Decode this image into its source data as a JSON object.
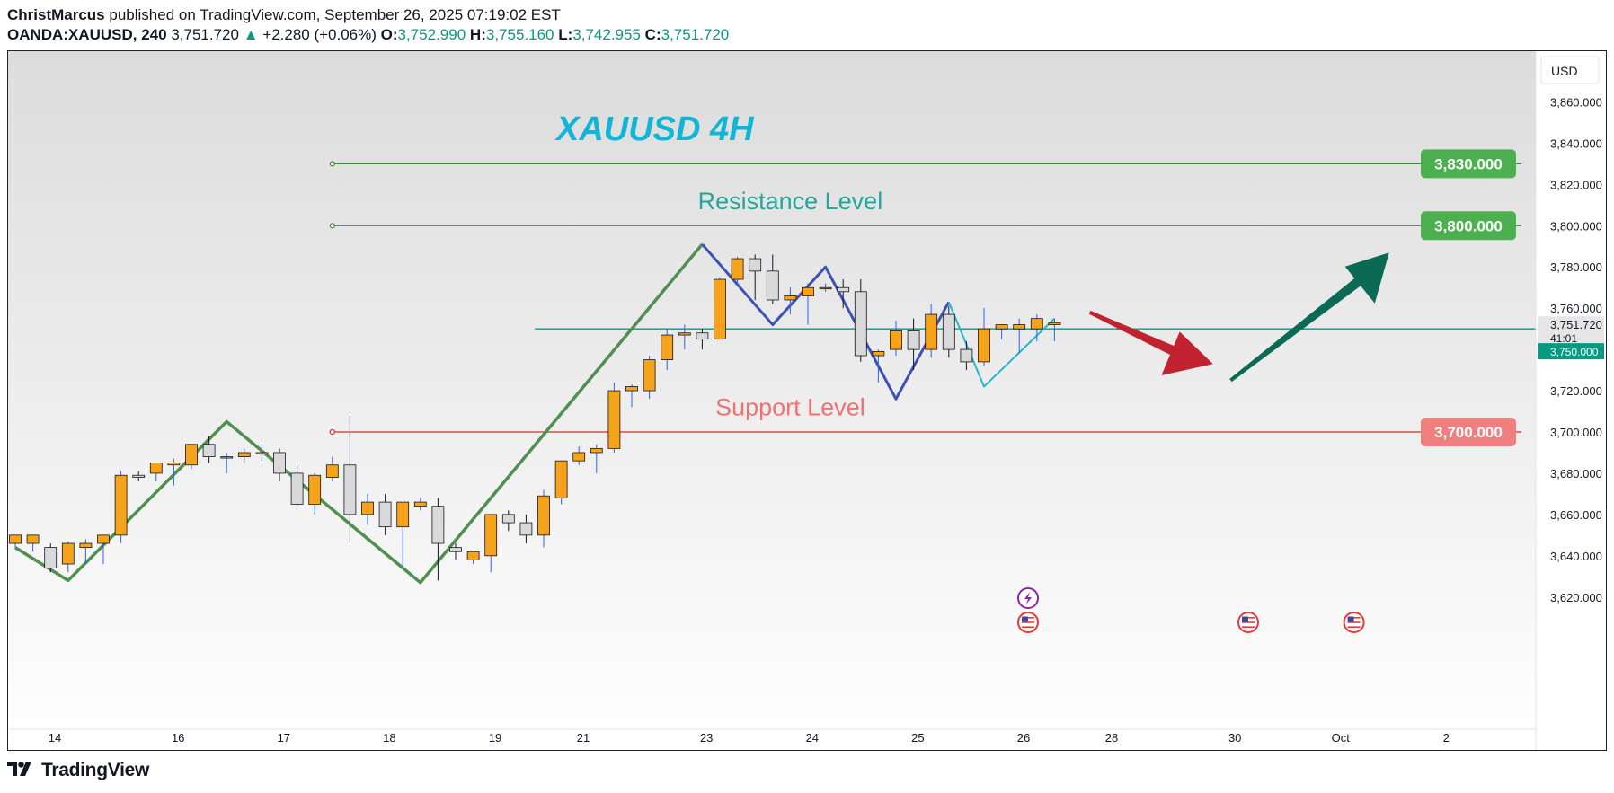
{
  "header": {
    "author": "ChristMarcus",
    "published": "published on TradingView.com, September 26, 2025 07:19:02 EST",
    "symbol": "OANDA:XAUUSD, 240",
    "last": "3,751.720",
    "change_arrow": "▲",
    "change": "+2.280 (+0.06%)",
    "o_label": "O:",
    "o_val": "3,752.990",
    "h_label": "H:",
    "h_val": "3,755.160",
    "l_label": "L:",
    "l_val": "3,742.955",
    "c_label": "C:",
    "c_val": "3,751.720"
  },
  "footer": {
    "brand": "TradingView",
    "logo_icon": "tradingview-logo-icon"
  },
  "colors": {
    "up": "#f7a21b",
    "down": "#d9d9d9",
    "resistance": "#3a8a3a",
    "support": "#e57373",
    "accent": "#089981"
  },
  "chart_data": {
    "type": "candlestick",
    "title": "XAUUSD 4H",
    "currency_button": "USD",
    "ylim": [
      3605,
      3885
    ],
    "y_ticks": [
      "3,620.000",
      "3,640.000",
      "3,660.000",
      "3,680.000",
      "3,700.000",
      "3,720.000",
      "3,740.000",
      "3,760.000",
      "3,780.000",
      "3,800.000",
      "3,820.000",
      "3,840.000",
      "3,860.000"
    ],
    "x_ticks": [
      {
        "label": "14",
        "x": 0
      },
      {
        "label": "16",
        "x": 7
      },
      {
        "label": "17",
        "x": 13
      },
      {
        "label": "18",
        "x": 19
      },
      {
        "label": "19",
        "x": 25
      },
      {
        "label": "21",
        "x": 30
      },
      {
        "label": "23",
        "x": 37
      },
      {
        "label": "24",
        "x": 43
      },
      {
        "label": "25",
        "x": 49
      },
      {
        "label": "26",
        "x": 55
      },
      {
        "label": "28",
        "x": 60
      },
      {
        "label": "30",
        "x": 67
      },
      {
        "label": "Oct",
        "x": 73
      },
      {
        "label": "2",
        "x": 79
      }
    ],
    "candles": [
      [
        3646,
        3650,
        3644,
        3650
      ],
      [
        3646,
        3650,
        3642,
        3650
      ],
      [
        3644,
        3646,
        3632,
        3634
      ],
      [
        3636,
        3647,
        3632,
        3646
      ],
      [
        3644,
        3648,
        3636,
        3646
      ],
      [
        3646,
        3650,
        3636,
        3650
      ],
      [
        3650,
        3681,
        3646,
        3679
      ],
      [
        3679,
        3681,
        3676,
        3678
      ],
      [
        3680,
        3685,
        3676,
        3685
      ],
      [
        3684,
        3687,
        3674,
        3685
      ],
      [
        3684,
        3694,
        3682,
        3694
      ],
      [
        3694,
        3698,
        3685,
        3688
      ],
      [
        3688,
        3690,
        3680,
        3688
      ],
      [
        3688,
        3692,
        3685,
        3690
      ],
      [
        3690,
        3694,
        3686,
        3690
      ],
      [
        3690,
        3692,
        3676,
        3680
      ],
      [
        3680,
        3684,
        3664,
        3665
      ],
      [
        3665,
        3680,
        3660,
        3679
      ],
      [
        3678,
        3688,
        3676,
        3684
      ],
      [
        3684,
        3708,
        3646,
        3660
      ],
      [
        3660,
        3670,
        3655,
        3666
      ],
      [
        3666,
        3670,
        3650,
        3654
      ],
      [
        3654,
        3666,
        3634,
        3666
      ],
      [
        3664,
        3668,
        3662,
        3666
      ],
      [
        3664,
        3668,
        3628,
        3646
      ],
      [
        3644,
        3646,
        3638,
        3642
      ],
      [
        3638,
        3642,
        3636,
        3642
      ],
      [
        3640,
        3660,
        3632,
        3660
      ],
      [
        3660,
        3662,
        3652,
        3656
      ],
      [
        3656,
        3660,
        3646,
        3650
      ],
      [
        3650,
        3672,
        3644,
        3669
      ],
      [
        3668,
        3686,
        3665,
        3686
      ],
      [
        3686,
        3693,
        3684,
        3690
      ],
      [
        3690,
        3694,
        3680,
        3692
      ],
      [
        3692,
        3724,
        3690,
        3720
      ],
      [
        3720,
        3723,
        3712,
        3722
      ],
      [
        3720,
        3737,
        3716,
        3735
      ],
      [
        3735,
        3750,
        3730,
        3747
      ],
      [
        3747,
        3752,
        3740,
        3748
      ],
      [
        3748,
        3750,
        3740,
        3745
      ],
      [
        3745,
        3775,
        3745,
        3774
      ],
      [
        3774,
        3785,
        3771,
        3784
      ],
      [
        3784,
        3786,
        3764,
        3778
      ],
      [
        3778,
        3786,
        3762,
        3764
      ],
      [
        3764,
        3770,
        3757,
        3766
      ],
      [
        3766,
        3772,
        3752,
        3770
      ],
      [
        3770,
        3772,
        3768,
        3770
      ],
      [
        3770,
        3774,
        3760,
        3768
      ],
      [
        3768,
        3774,
        3734,
        3737
      ],
      [
        3737,
        3740,
        3724,
        3739
      ],
      [
        3740,
        3754,
        3737,
        3749
      ],
      [
        3749,
        3755,
        3730,
        3740
      ],
      [
        3740,
        3762,
        3736,
        3757
      ],
      [
        3757,
        3761,
        3736,
        3740
      ],
      [
        3740,
        3744,
        3730,
        3734
      ],
      [
        3734,
        3760,
        3732,
        3750
      ],
      [
        3750,
        3752,
        3745,
        3752
      ],
      [
        3750,
        3755,
        3738,
        3752
      ],
      [
        3750,
        3757,
        3744,
        3755
      ],
      [
        3752,
        3755,
        3744,
        3753
      ]
    ],
    "current_price": "3,751.720",
    "countdown": "41:01",
    "green_line_price": "3,750.000",
    "levels": [
      {
        "price": 3830,
        "label": "3,830.000",
        "color": "#3a8a3a",
        "badge": "#4caf50",
        "from_x": 18,
        "name": "level-3830"
      },
      {
        "price": 3800,
        "label": "3,800.000",
        "color": "#3a8a3a",
        "badge": "#4caf50",
        "from_x": 18,
        "name": "level-3800"
      },
      {
        "price": 3700,
        "label": "3,700.000",
        "color": "#d32f2f",
        "badge": "#f08080",
        "from_x": 18,
        "name": "level-3700"
      }
    ],
    "annotations": [
      {
        "text": "Resistance Level",
        "x": 44,
        "price": 3808,
        "color": "#26a69a"
      },
      {
        "text": "Support Level",
        "x": 44,
        "price": 3708,
        "color": "#ef7272"
      }
    ],
    "green_zigzag": [
      [
        0,
        3644
      ],
      [
        3,
        3628
      ],
      [
        12,
        3705
      ],
      [
        23,
        3627
      ],
      [
        39,
        3791
      ]
    ],
    "blue_zigzag": [
      [
        39,
        3791
      ],
      [
        43,
        3752
      ],
      [
        46,
        3780
      ],
      [
        50,
        3716
      ],
      [
        53,
        3763
      ]
    ],
    "cyan_zigzag": [
      [
        53,
        3763
      ],
      [
        55,
        3722
      ],
      [
        59,
        3755
      ]
    ],
    "events": [
      {
        "x": 57.5,
        "type": "flash-icon",
        "row": 1
      },
      {
        "x": 57.5,
        "type": "us-flag-icon",
        "row": 2
      },
      {
        "x": 70,
        "type": "us-flag-icon",
        "row": 2
      },
      {
        "x": 76,
        "type": "us-flag-icon",
        "row": 2
      }
    ],
    "arrows": [
      {
        "name": "down-arrow",
        "color": "#c0222f",
        "from": [
          61,
          3758
        ],
        "to": [
          68,
          3733
        ]
      },
      {
        "name": "up-arrow",
        "color": "#0b6a55",
        "from": [
          69,
          3725
        ],
        "to": [
          78,
          3787
        ]
      }
    ]
  }
}
